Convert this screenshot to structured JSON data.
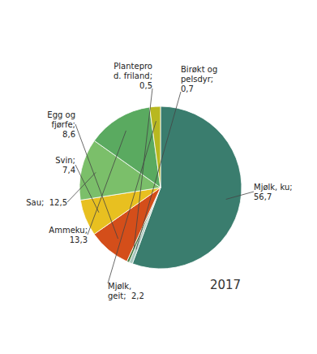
{
  "chart_data": {
    "type": "pie",
    "categories": [
      "Mjølk, ku;\n56,7",
      "Birøkt og\npelsdyr;\n0,7",
      "Plantepro\nd. friland;\n0,5",
      "Egg og\nfjørfe;\n8,6",
      "Svin;\n7,4",
      "Sau;  12,5",
      "Ammeku;\n13,3",
      "Mjølk,\ngeit;  2,2"
    ],
    "values": [
      56.7,
      0.7,
      0.5,
      8.6,
      7.4,
      12.5,
      13.3,
      2.2
    ],
    "colors": [
      "#3a7d6e",
      "#a8c8be",
      "#4a7c3f",
      "#d44e1a",
      "#e8c020",
      "#7bbf6a",
      "#5aaa60",
      "#b8b820"
    ],
    "annotations": [
      "2017"
    ]
  }
}
